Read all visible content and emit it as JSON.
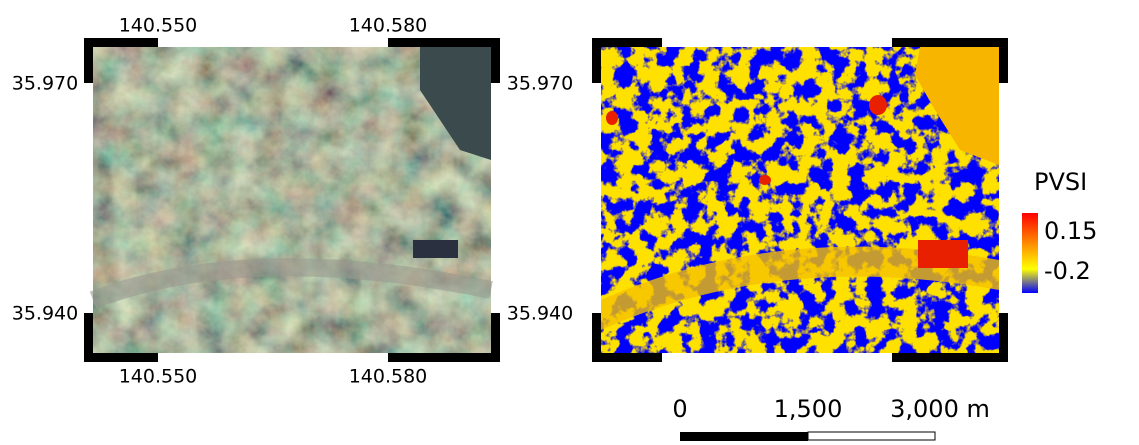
{
  "left_map": {
    "top_labels": [
      "140.550",
      "140.580"
    ],
    "bottom_labels": [
      "140.550",
      "140.580"
    ],
    "left_labels": [
      "35.970",
      "35.940"
    ]
  },
  "right_map": {
    "left_labels": [
      "35.970",
      "35.940"
    ]
  },
  "legend": {
    "title": "PVSI",
    "labels": [
      "0.15",
      "-0.2"
    ]
  },
  "scale_bar": {
    "labels": [
      "0",
      "1,500",
      "3,000 m"
    ]
  }
}
